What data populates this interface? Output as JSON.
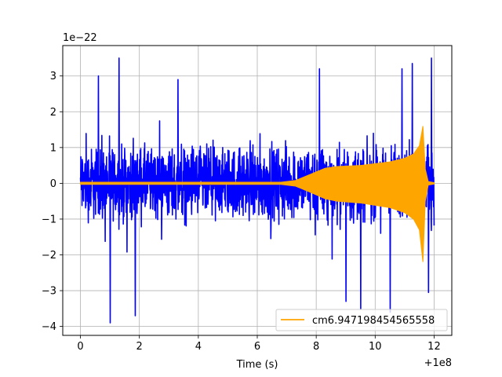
{
  "chart_data": {
    "type": "line",
    "title": "",
    "xlabel": "Time (s)",
    "ylabel": "",
    "x_offset_label": "+1e8",
    "y_scale_label": "1e−22",
    "xlim": [
      -0.6,
      12.6
    ],
    "ylim": [
      -4.25,
      3.85
    ],
    "x_ticks": [
      0,
      2,
      4,
      6,
      8,
      10,
      12
    ],
    "x_tick_labels": [
      "0",
      "2",
      "4",
      "6",
      "8",
      "10",
      "12"
    ],
    "y_ticks": [
      -4,
      -3,
      -2,
      -1,
      0,
      1,
      2,
      3
    ],
    "y_tick_labels": [
      "−4",
      "−3",
      "−2",
      "−1",
      "0",
      "1",
      "2",
      "3"
    ],
    "grid": true,
    "legend_position": "lower-right",
    "series": [
      {
        "color": "#0000ff",
        "description": "noisy strain data",
        "x_range": [
          0,
          12
        ],
        "amplitude_typical": 1.2,
        "peak_max": 3.5,
        "peak_min": -3.9
      },
      {
        "name": "cm6.947198454565558",
        "color": "#ffa500",
        "description": "chirp waveform template",
        "envelope": {
          "x": [
            0,
            6.8,
            7.3,
            7.8,
            8.3,
            8.7,
            9.5,
            10.5,
            11.0,
            11.3,
            11.5,
            11.62,
            11.7,
            11.8,
            12.0
          ],
          "upper": [
            0.03,
            0.03,
            0.08,
            0.25,
            0.42,
            0.47,
            0.5,
            0.6,
            0.7,
            0.82,
            1.05,
            1.6,
            0.4,
            0.05,
            0.02
          ],
          "lower": [
            -0.03,
            -0.03,
            -0.08,
            -0.25,
            -0.43,
            -0.5,
            -0.55,
            -0.68,
            -0.82,
            -1.0,
            -1.3,
            -2.2,
            -0.5,
            -0.05,
            -0.02
          ]
        }
      }
    ]
  }
}
